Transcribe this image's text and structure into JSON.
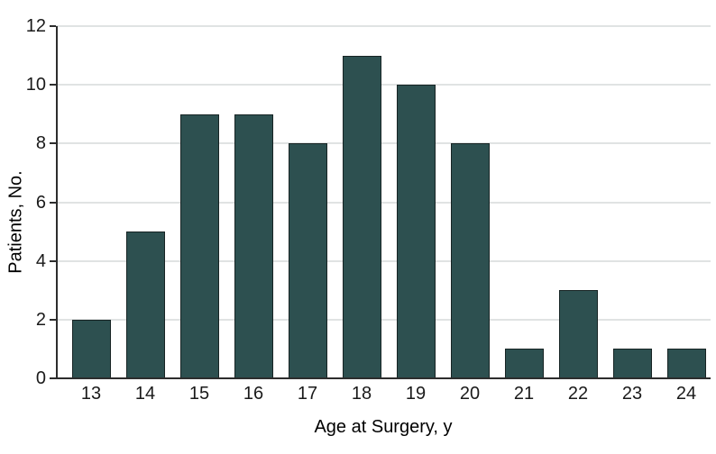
{
  "figure": {
    "background": "#ffffff"
  },
  "chart_data": {
    "type": "bar",
    "title": "",
    "categories": [
      "13",
      "14",
      "15",
      "16",
      "17",
      "18",
      "19",
      "20",
      "21",
      "22",
      "23",
      "24"
    ],
    "values": [
      2,
      5,
      9,
      9,
      8,
      11,
      10,
      8,
      1,
      3,
      1,
      1
    ],
    "xlabel": "Age at Surgery, y",
    "ylabel": "Patients, No.",
    "ylim": [
      0,
      12
    ],
    "yticks": [
      0,
      2,
      4,
      6,
      8,
      10,
      12
    ],
    "grid": true,
    "legend_position": "none",
    "colors": {
      "bar_fill": "#2d5050",
      "bar_border": "#172424",
      "gridline": "#e0e3e3",
      "axis": "#2d2d2d",
      "text": "#1a1a1a"
    }
  }
}
